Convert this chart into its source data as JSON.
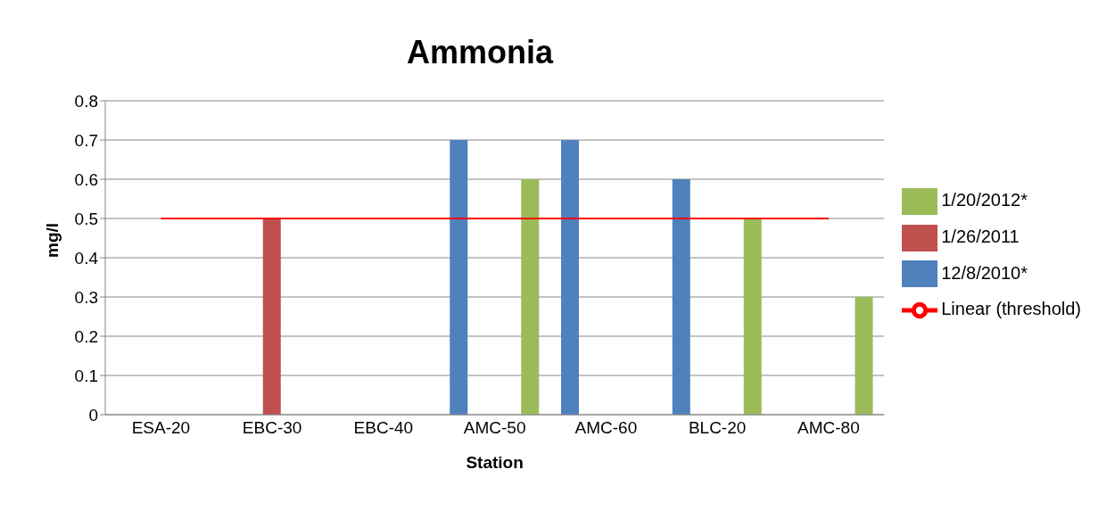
{
  "chart_data": {
    "type": "bar",
    "title": "Ammonia",
    "xlabel": "Station",
    "ylabel": "mg/l",
    "categories": [
      "ESA-20",
      "EBC-30",
      "EBC-40",
      "AMC-50",
      "AMC-60",
      "BLC-20",
      "AMC-80"
    ],
    "series": [
      {
        "name": "12/8/2010*",
        "color": "#4f81bd",
        "values": [
          null,
          null,
          null,
          0.7,
          0.7,
          0.6,
          null
        ]
      },
      {
        "name": "1/26/2011",
        "color": "#c0504d",
        "values": [
          null,
          0.5,
          null,
          null,
          null,
          null,
          null
        ]
      },
      {
        "name": "1/20/2012*",
        "color": "#9bbb59",
        "values": [
          null,
          null,
          null,
          0.6,
          null,
          0.5,
          0.3
        ]
      },
      {
        "name": "Linear (threshold)",
        "type": "line",
        "color": "#ff0000",
        "marker": "none",
        "values": [
          0.5,
          0.5,
          0.5,
          0.5,
          0.5,
          0.5,
          0.5
        ]
      }
    ],
    "ylim": [
      0,
      0.8
    ],
    "yticks": [
      0,
      0.1,
      0.2,
      0.3,
      0.4,
      0.5,
      0.6,
      0.7,
      0.8
    ],
    "grid": "y",
    "legend": "right"
  }
}
